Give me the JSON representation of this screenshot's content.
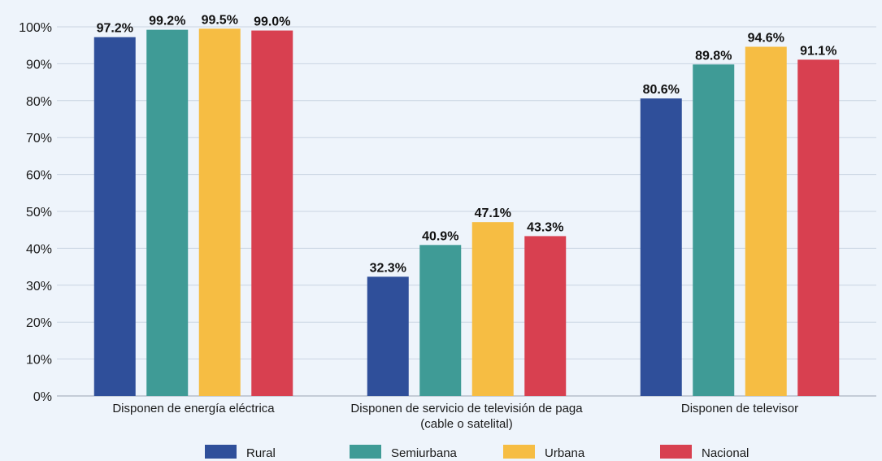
{
  "chart_data": {
    "type": "bar",
    "categories": [
      [
        "Disponen de energía eléctrica"
      ],
      [
        "Disponen de servicio de televisión de paga",
        "(cable o satelital)"
      ],
      [
        "Disponen de televisor"
      ]
    ],
    "series": [
      {
        "name": "Rural",
        "color": "#2f4f9a",
        "values": [
          97.2,
          32.3,
          80.6
        ],
        "labels": [
          "97.2%",
          "32.3%",
          "80.6%"
        ]
      },
      {
        "name": "Semiurbana",
        "color": "#3f9b96",
        "values": [
          99.2,
          40.9,
          89.8
        ],
        "labels": [
          "99.2%",
          "40.9%",
          "89.8%"
        ]
      },
      {
        "name": "Urbana",
        "color": "#f6bd43",
        "values": [
          99.5,
          47.1,
          94.6
        ],
        "labels": [
          "99.5%",
          "47.1%",
          "94.6%"
        ]
      },
      {
        "name": "Nacional",
        "color": "#d84050",
        "values": [
          99.0,
          43.3,
          91.1
        ],
        "labels": [
          "99.0%",
          "43.3%",
          "91.1%"
        ]
      }
    ],
    "yticks": [
      "0%",
      "10%",
      "20%",
      "30%",
      "40%",
      "50%",
      "60%",
      "70%",
      "80%",
      "90%",
      "100%"
    ],
    "ylim": [
      0,
      100
    ],
    "grid": true,
    "legend": "bottom",
    "background": "#eef4fb",
    "grid_color": "#c9d4e2"
  }
}
